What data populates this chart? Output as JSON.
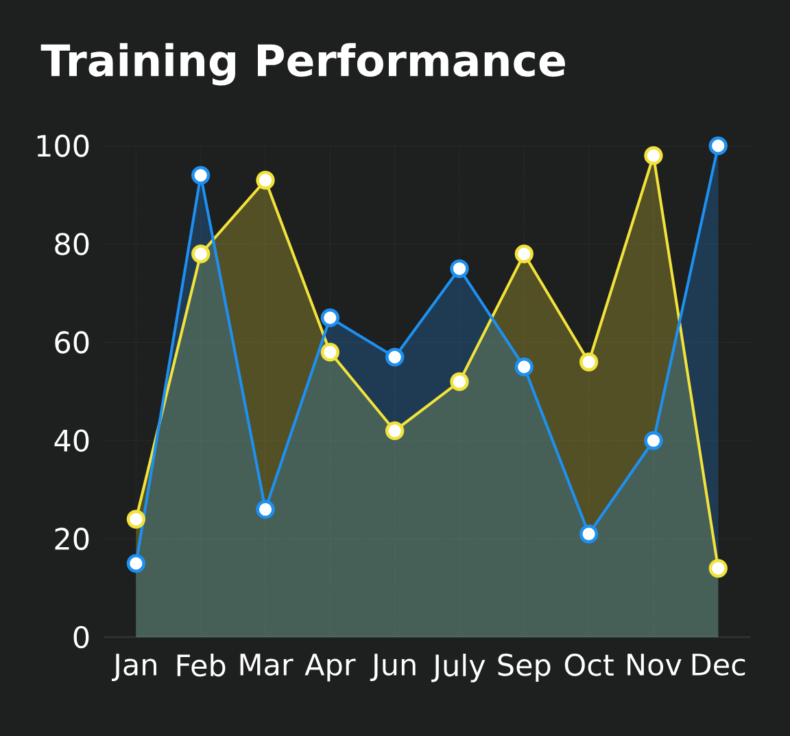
{
  "chart_data": {
    "type": "area",
    "title": "Training Performance",
    "categories": [
      "Jan",
      "Feb",
      "Mar",
      "Apr",
      "Jun",
      "July",
      "Sep",
      "Oct",
      "Nov",
      "Dec"
    ],
    "series": [
      {
        "color": "#f2e23c",
        "values": [
          24,
          78,
          93,
          58,
          42,
          52,
          78,
          56,
          98,
          14
        ]
      },
      {
        "color": "#1e90f0",
        "values": [
          15,
          94,
          26,
          65,
          57,
          75,
          55,
          21,
          40,
          100
        ]
      }
    ],
    "ylim": [
      0,
      100
    ],
    "yticks": [
      0,
      20,
      40,
      60,
      80,
      100
    ],
    "grid": true,
    "marker": "circle",
    "line_style": "solid"
  }
}
